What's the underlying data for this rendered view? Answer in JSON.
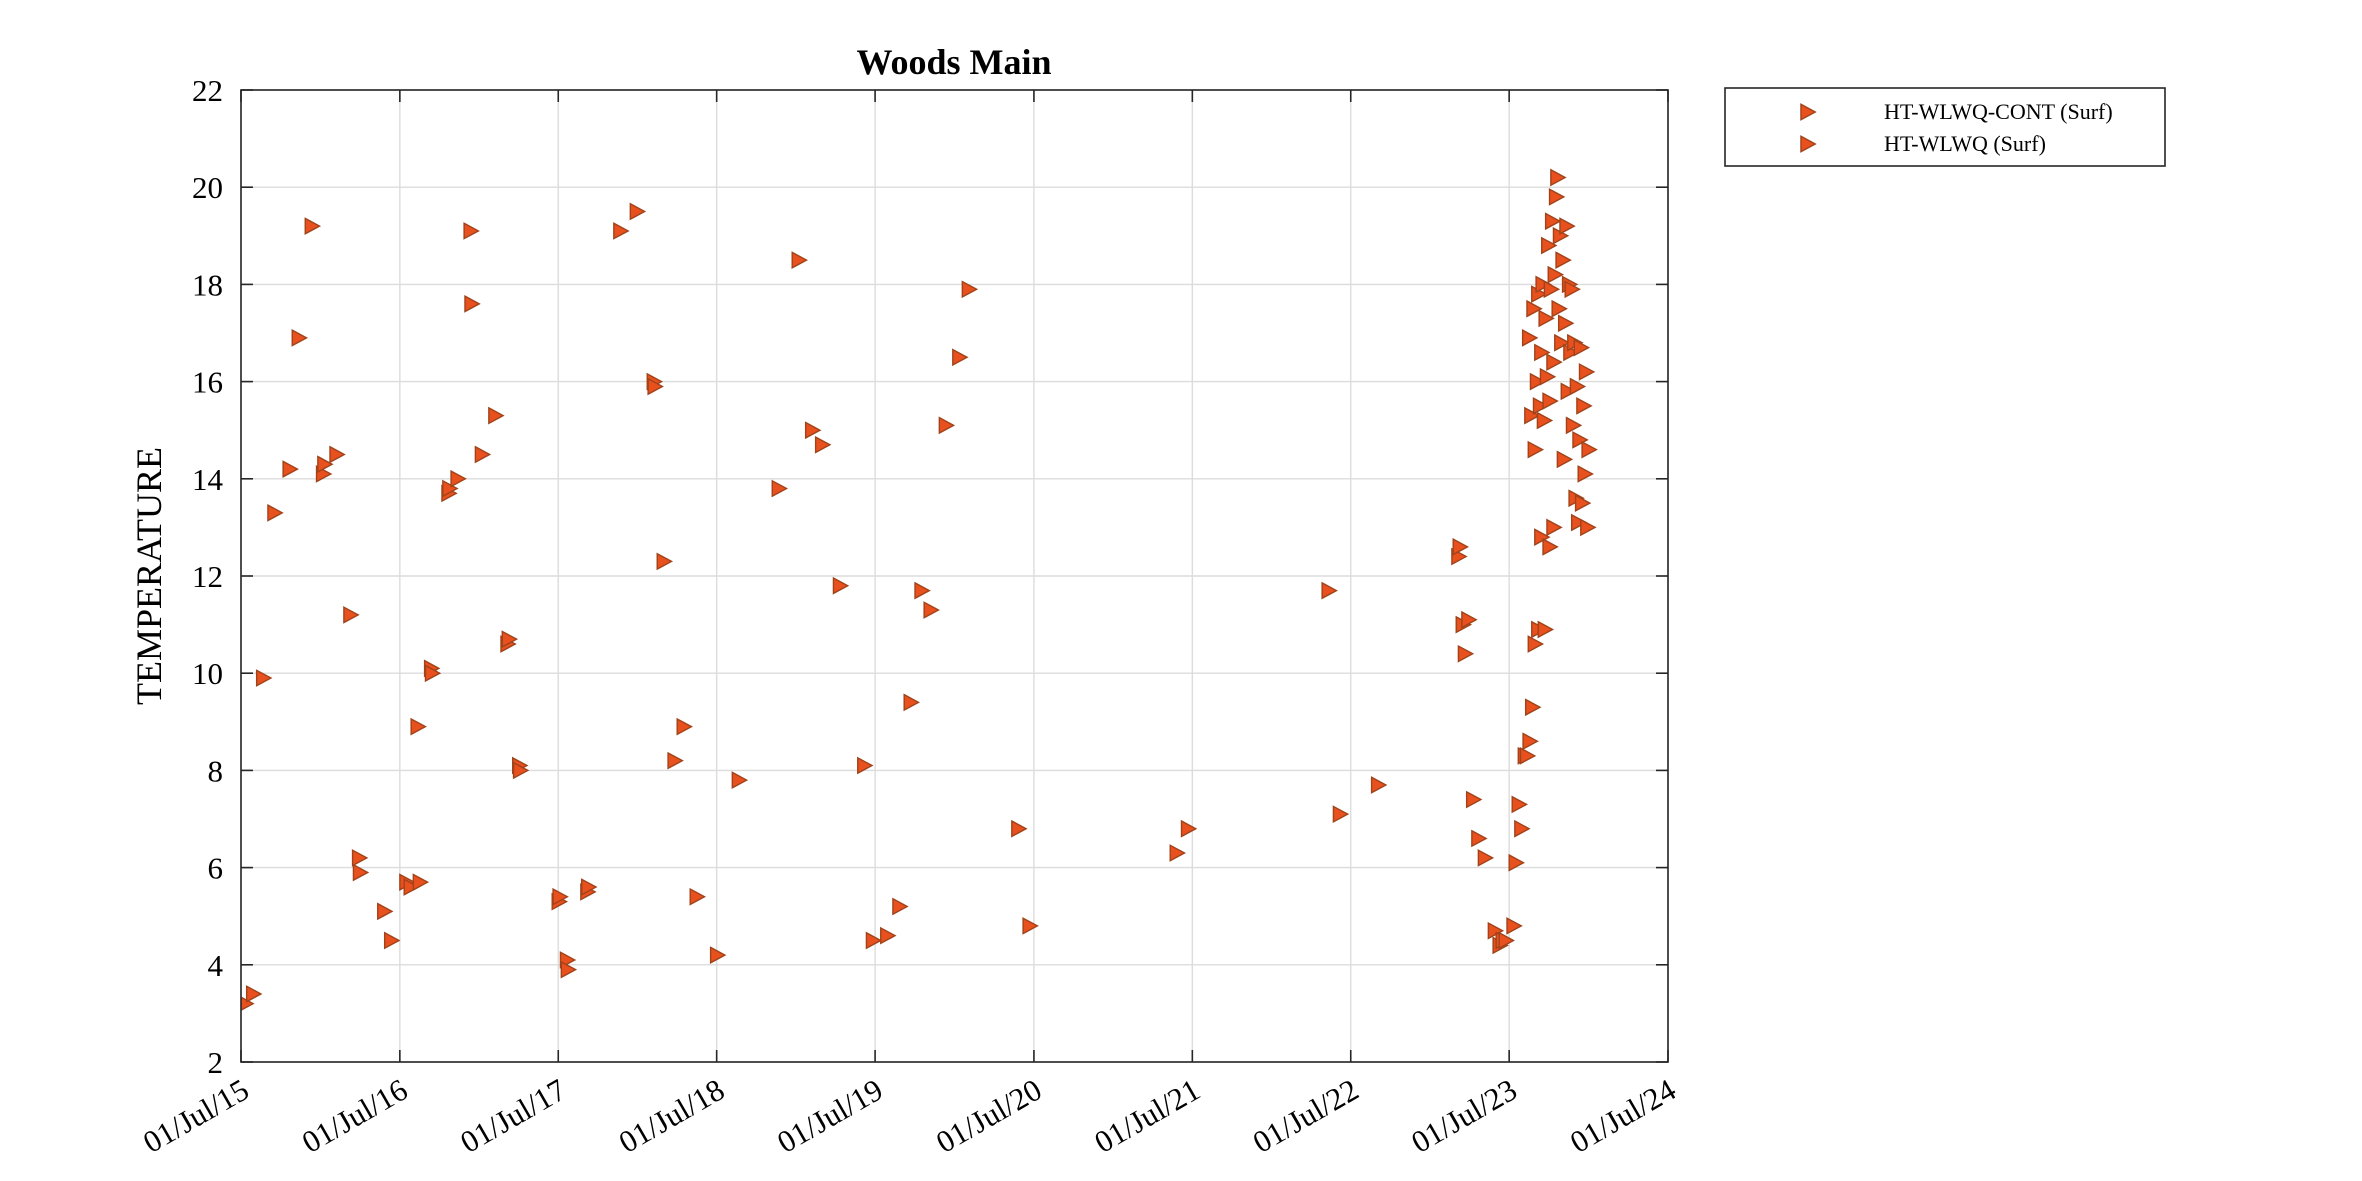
{
  "chart_data": {
    "type": "scatter",
    "title": "Woods Main",
    "xlabel": "",
    "ylabel": "TEMPERATURE",
    "ylim": [
      2,
      22
    ],
    "yticks": [
      2,
      4,
      6,
      8,
      10,
      12,
      14,
      16,
      18,
      20,
      22
    ],
    "xlim": [
      "2015-07-01",
      "2024-07-01"
    ],
    "xticks": [
      "2015-07-01",
      "2016-07-01",
      "2017-07-01",
      "2018-07-01",
      "2019-07-01",
      "2020-07-01",
      "2021-07-01",
      "2022-07-01",
      "2023-07-01",
      "2024-07-01"
    ],
    "xtick_labels": [
      "01/Jul/15",
      "01/Jul/16",
      "01/Jul/17",
      "01/Jul/18",
      "01/Jul/19",
      "01/Jul/20",
      "01/Jul/21",
      "01/Jul/22",
      "01/Jul/23",
      "01/Jul/24"
    ],
    "grid": true,
    "legend_position": "outside-top-right",
    "marker": "right-triangle",
    "marker_color": "#E8501E",
    "marker_edge": "#A0431A",
    "series": [
      {
        "name": "HT-WLWQ-CONT (Surf)",
        "points": [
          [
            "2023-08-15",
            16.9
          ],
          [
            "2023-08-20",
            15.3
          ],
          [
            "2023-08-25",
            17.5
          ],
          [
            "2023-08-28",
            14.6
          ],
          [
            "2023-09-02",
            16.0
          ],
          [
            "2023-09-05",
            17.8
          ],
          [
            "2023-09-09",
            15.5
          ],
          [
            "2023-09-12",
            16.6
          ],
          [
            "2023-09-15",
            18.0
          ],
          [
            "2023-09-18",
            15.2
          ],
          [
            "2023-09-22",
            17.3
          ],
          [
            "2023-09-25",
            16.1
          ],
          [
            "2023-09-28",
            18.8
          ],
          [
            "2023-10-01",
            15.6
          ],
          [
            "2023-10-04",
            17.9
          ],
          [
            "2023-10-07",
            19.3
          ],
          [
            "2023-10-10",
            16.4
          ],
          [
            "2023-10-13",
            18.2
          ],
          [
            "2023-10-16",
            19.8
          ],
          [
            "2023-10-19",
            20.2
          ],
          [
            "2023-10-22",
            17.5
          ],
          [
            "2023-10-25",
            19.0
          ],
          [
            "2023-10-28",
            16.8
          ],
          [
            "2023-10-31",
            18.5
          ],
          [
            "2023-11-03",
            14.4
          ],
          [
            "2023-11-06",
            17.2
          ],
          [
            "2023-11-09",
            19.2
          ],
          [
            "2023-11-12",
            15.8
          ],
          [
            "2023-11-15",
            18.0
          ],
          [
            "2023-11-18",
            16.6
          ],
          [
            "2023-11-21",
            17.9
          ],
          [
            "2023-11-24",
            15.1
          ],
          [
            "2023-11-27",
            16.8
          ],
          [
            "2023-11-30",
            13.6
          ],
          [
            "2023-12-03",
            15.9
          ],
          [
            "2023-12-06",
            13.1
          ],
          [
            "2023-12-09",
            14.8
          ],
          [
            "2023-12-12",
            16.7
          ],
          [
            "2023-12-15",
            13.5
          ],
          [
            "2023-12-18",
            15.5
          ],
          [
            "2023-12-21",
            14.1
          ],
          [
            "2023-12-24",
            16.2
          ],
          [
            "2023-12-27",
            13.0
          ],
          [
            "2023-12-30",
            14.6
          ]
        ]
      },
      {
        "name": "HT-WLWQ (Surf)",
        "points": [
          [
            "2015-07-10",
            3.2
          ],
          [
            "2015-07-28",
            3.4
          ],
          [
            "2015-08-20",
            9.9
          ],
          [
            "2015-09-15",
            13.3
          ],
          [
            "2015-10-20",
            14.2
          ],
          [
            "2015-11-10",
            16.9
          ],
          [
            "2015-12-10",
            19.2
          ],
          [
            "2016-01-05",
            14.1
          ],
          [
            "2016-01-08",
            14.3
          ],
          [
            "2016-02-05",
            14.5
          ],
          [
            "2016-03-08",
            11.2
          ],
          [
            "2016-03-28",
            6.2
          ],
          [
            "2016-03-30",
            5.9
          ],
          [
            "2016-05-25",
            5.1
          ],
          [
            "2016-06-10",
            4.5
          ],
          [
            "2016-07-15",
            5.7
          ],
          [
            "2016-07-25",
            5.6
          ],
          [
            "2016-08-10",
            8.9
          ],
          [
            "2016-08-15",
            5.7
          ],
          [
            "2016-09-10",
            10.1
          ],
          [
            "2016-09-12",
            10.0
          ],
          [
            "2016-10-20",
            13.7
          ],
          [
            "2016-10-22",
            13.8
          ],
          [
            "2016-11-10",
            14.0
          ],
          [
            "2016-12-10",
            19.1
          ],
          [
            "2016-12-12",
            17.6
          ],
          [
            "2017-01-05",
            14.5
          ],
          [
            "2017-02-05",
            15.3
          ],
          [
            "2017-03-05",
            10.6
          ],
          [
            "2017-03-08",
            10.7
          ],
          [
            "2017-04-01",
            8.1
          ],
          [
            "2017-04-03",
            8.0
          ],
          [
            "2017-07-01",
            5.3
          ],
          [
            "2017-07-03",
            5.4
          ],
          [
            "2017-07-20",
            4.1
          ],
          [
            "2017-07-22",
            3.9
          ],
          [
            "2017-09-05",
            5.5
          ],
          [
            "2017-09-07",
            5.6
          ],
          [
            "2017-11-20",
            19.1
          ],
          [
            "2017-12-28",
            19.5
          ],
          [
            "2018-02-05",
            16.0
          ],
          [
            "2018-02-07",
            15.9
          ],
          [
            "2018-02-28",
            12.3
          ],
          [
            "2018-03-25",
            8.2
          ],
          [
            "2018-04-15",
            8.9
          ],
          [
            "2018-05-15",
            5.4
          ],
          [
            "2018-07-01",
            4.2
          ],
          [
            "2018-08-20",
            7.8
          ],
          [
            "2018-11-20",
            13.8
          ],
          [
            "2019-01-05",
            18.5
          ],
          [
            "2019-02-05",
            15.0
          ],
          [
            "2019-02-28",
            14.7
          ],
          [
            "2019-04-10",
            11.8
          ],
          [
            "2019-06-05",
            8.1
          ],
          [
            "2019-06-25",
            4.5
          ],
          [
            "2019-07-28",
            4.6
          ],
          [
            "2019-08-25",
            5.2
          ],
          [
            "2019-09-20",
            9.4
          ],
          [
            "2019-10-15",
            11.7
          ],
          [
            "2019-11-05",
            11.3
          ],
          [
            "2019-12-10",
            15.1
          ],
          [
            "2020-01-10",
            16.5
          ],
          [
            "2020-02-01",
            17.9
          ],
          [
            "2020-05-25",
            6.8
          ],
          [
            "2020-06-20",
            4.8
          ],
          [
            "2021-05-25",
            6.3
          ],
          [
            "2021-06-20",
            6.8
          ],
          [
            "2022-05-10",
            11.7
          ],
          [
            "2022-06-05",
            7.1
          ],
          [
            "2022-09-01",
            7.7
          ],
          [
            "2023-03-05",
            12.4
          ],
          [
            "2023-03-08",
            12.6
          ],
          [
            "2023-03-15",
            11.0
          ],
          [
            "2023-03-20",
            10.4
          ],
          [
            "2023-03-28",
            11.1
          ],
          [
            "2023-04-08",
            7.4
          ],
          [
            "2023-04-20",
            6.6
          ],
          [
            "2023-05-05",
            6.2
          ],
          [
            "2023-05-28",
            4.7
          ],
          [
            "2023-06-08",
            4.4
          ],
          [
            "2023-06-15",
            4.5
          ],
          [
            "2023-06-22",
            4.5
          ],
          [
            "2023-07-10",
            4.8
          ],
          [
            "2023-07-15",
            6.1
          ],
          [
            "2023-07-22",
            7.3
          ],
          [
            "2023-07-28",
            6.8
          ],
          [
            "2023-08-05",
            8.3
          ],
          [
            "2023-08-10",
            8.3
          ],
          [
            "2023-08-16",
            8.6
          ],
          [
            "2023-08-22",
            9.3
          ],
          [
            "2023-08-28",
            10.6
          ],
          [
            "2023-09-05",
            10.9
          ],
          [
            "2023-09-12",
            12.8
          ],
          [
            "2023-09-20",
            10.9
          ],
          [
            "2023-10-01",
            12.6
          ],
          [
            "2023-10-10",
            13.0
          ]
        ]
      }
    ]
  }
}
